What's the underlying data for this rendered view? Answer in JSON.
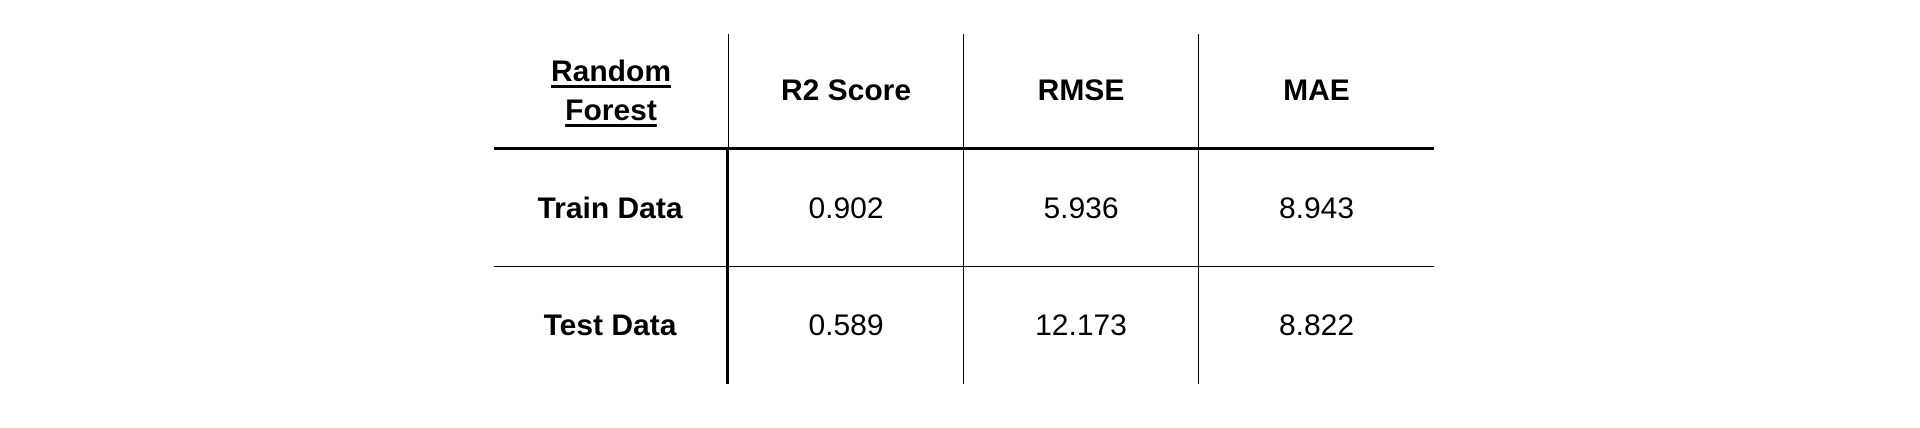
{
  "table": {
    "corner_label": "Random\nForest",
    "headers": [
      "R2 Score",
      "RMSE",
      "MAE"
    ],
    "rows": [
      {
        "label": "Train Data",
        "values": [
          "0.902",
          "5.936",
          "8.943"
        ]
      },
      {
        "label": "Test Data",
        "values": [
          "0.589",
          "12.173",
          "8.822"
        ]
      }
    ]
  }
}
